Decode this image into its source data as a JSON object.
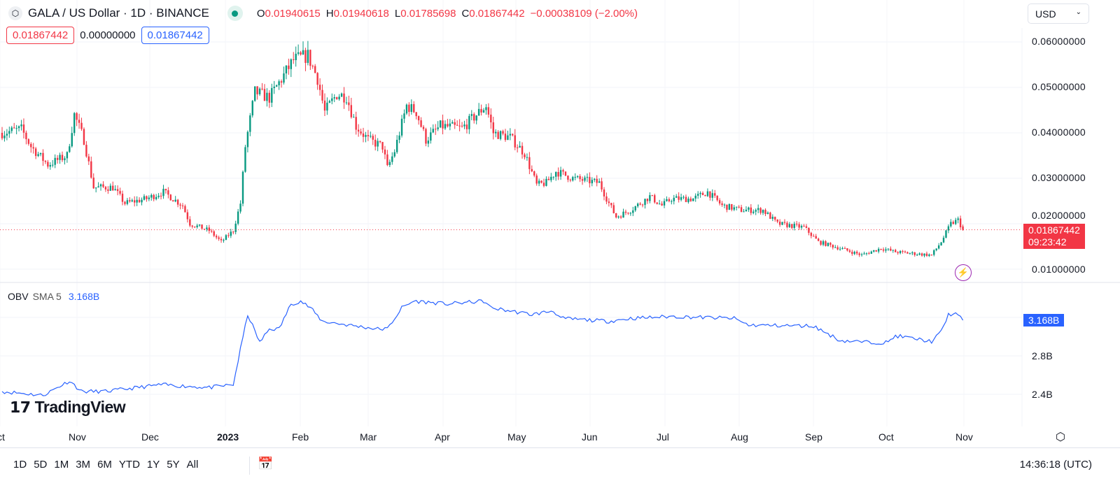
{
  "header": {
    "symbol": "GALA / US Dollar · 1D · BINANCE",
    "open_label": "O",
    "open": "0.01940615",
    "high_label": "H",
    "high": "0.01940618",
    "low_label": "L",
    "low": "0.01785698",
    "close_label": "C",
    "close": "0.01867442",
    "change": "−0.00038109 (−2.00%)"
  },
  "boxes": {
    "bid": "0.01867442",
    "spread": "0.00000000",
    "ask": "0.01867442"
  },
  "currency": "USD",
  "price_axis": [
    "0.06000000",
    "0.05000000",
    "0.04000000",
    "0.03000000",
    "0.02000000",
    "0.01000000"
  ],
  "last_price": {
    "value": "0.01867442",
    "countdown": "09:23:42"
  },
  "obv": {
    "name": "OBV",
    "sma": "SMA 5",
    "value": "3.168B",
    "axis": [
      "2.8B",
      "2.4B"
    ]
  },
  "time_axis": [
    "ct",
    "Nov",
    "Dec",
    "2023",
    "Feb",
    "Mar",
    "Apr",
    "May",
    "Jun",
    "Jul",
    "Aug",
    "Sep",
    "Oct",
    "Nov"
  ],
  "brand": "TradingView",
  "ranges": [
    "1D",
    "5D",
    "1M",
    "3M",
    "6M",
    "YTD",
    "1Y",
    "5Y",
    "All"
  ],
  "clock": "14:36:18 (UTC)",
  "colors": {
    "up": "#089981",
    "down": "#f23645",
    "obv": "#2962ff"
  },
  "chart_data": {
    "type": "candlestick",
    "title": "GALA / US Dollar · 1D · BINANCE",
    "x_unit": "days since 2022-10-01",
    "ylim": [
      0.0062,
      0.0653
    ],
    "approx_close_path": [
      [
        0,
        0.04
      ],
      [
        8,
        0.0408
      ],
      [
        12,
        0.037
      ],
      [
        19,
        0.033
      ],
      [
        27,
        0.035
      ],
      [
        30,
        0.044
      ],
      [
        34,
        0.0385
      ],
      [
        38,
        0.028
      ],
      [
        46,
        0.028
      ],
      [
        51,
        0.0245
      ],
      [
        60,
        0.0255
      ],
      [
        67,
        0.027
      ],
      [
        75,
        0.024
      ],
      [
        78,
        0.02
      ],
      [
        86,
        0.0185
      ],
      [
        91,
        0.016
      ],
      [
        96,
        0.0185
      ],
      [
        99,
        0.0245
      ],
      [
        101,
        0.037
      ],
      [
        105,
        0.049
      ],
      [
        111,
        0.0477
      ],
      [
        115,
        0.051
      ],
      [
        121,
        0.056
      ],
      [
        127,
        0.057
      ],
      [
        131,
        0.052
      ],
      [
        134,
        0.0446
      ],
      [
        139,
        0.0485
      ],
      [
        143,
        0.048
      ],
      [
        147,
        0.0415
      ],
      [
        152,
        0.0385
      ],
      [
        158,
        0.037
      ],
      [
        160,
        0.0322
      ],
      [
        163,
        0.036
      ],
      [
        168,
        0.046
      ],
      [
        172,
        0.0446
      ],
      [
        176,
        0.0385
      ],
      [
        182,
        0.0415
      ],
      [
        191,
        0.041
      ],
      [
        197,
        0.044
      ],
      [
        201,
        0.046
      ],
      [
        204,
        0.04
      ],
      [
        211,
        0.039
      ],
      [
        217,
        0.0355
      ],
      [
        222,
        0.0285
      ],
      [
        226,
        0.029
      ],
      [
        230,
        0.0315
      ],
      [
        237,
        0.03
      ],
      [
        248,
        0.029
      ],
      [
        252,
        0.0245
      ],
      [
        255,
        0.0215
      ],
      [
        261,
        0.023
      ],
      [
        269,
        0.026
      ],
      [
        274,
        0.024
      ],
      [
        278,
        0.0255
      ],
      [
        287,
        0.0255
      ],
      [
        293,
        0.027
      ],
      [
        299,
        0.024
      ],
      [
        307,
        0.023
      ],
      [
        316,
        0.023
      ],
      [
        322,
        0.02
      ],
      [
        333,
        0.0192
      ],
      [
        339,
        0.016
      ],
      [
        348,
        0.0146
      ],
      [
        357,
        0.0131
      ],
      [
        365,
        0.0146
      ],
      [
        371,
        0.0138
      ],
      [
        377,
        0.0135
      ],
      [
        386,
        0.0131
      ],
      [
        390,
        0.016
      ],
      [
        394,
        0.02
      ],
      [
        397,
        0.0208
      ],
      [
        399,
        0.01867
      ]
    ],
    "obv_path_billions": [
      [
        0,
        2.43
      ],
      [
        17,
        2.39
      ],
      [
        28,
        2.54
      ],
      [
        33,
        2.43
      ],
      [
        43,
        2.43
      ],
      [
        66,
        2.5
      ],
      [
        86,
        2.47
      ],
      [
        96,
        2.5
      ],
      [
        99,
        2.87
      ],
      [
        102,
        3.23
      ],
      [
        107,
        2.94
      ],
      [
        111,
        3.08
      ],
      [
        115,
        3.08
      ],
      [
        120,
        3.34
      ],
      [
        124,
        3.37
      ],
      [
        128,
        3.3
      ],
      [
        133,
        3.16
      ],
      [
        144,
        3.12
      ],
      [
        156,
        3.08
      ],
      [
        160,
        3.08
      ],
      [
        166,
        3.3
      ],
      [
        171,
        3.37
      ],
      [
        185,
        3.34
      ],
      [
        200,
        3.37
      ],
      [
        203,
        3.3
      ],
      [
        220,
        3.23
      ],
      [
        229,
        3.27
      ],
      [
        232,
        3.19
      ],
      [
        252,
        3.16
      ],
      [
        261,
        3.19
      ],
      [
        278,
        3.21
      ],
      [
        304,
        3.19
      ],
      [
        310,
        3.12
      ],
      [
        337,
        3.11
      ],
      [
        348,
        2.96
      ],
      [
        360,
        2.94
      ],
      [
        368,
        2.94
      ],
      [
        371,
        3.01
      ],
      [
        386,
        2.95
      ],
      [
        390,
        3.05
      ],
      [
        393,
        3.23
      ],
      [
        396,
        3.24
      ],
      [
        399,
        3.17
      ]
    ],
    "obv_ylim": [
      2.17,
      3.91
    ]
  }
}
